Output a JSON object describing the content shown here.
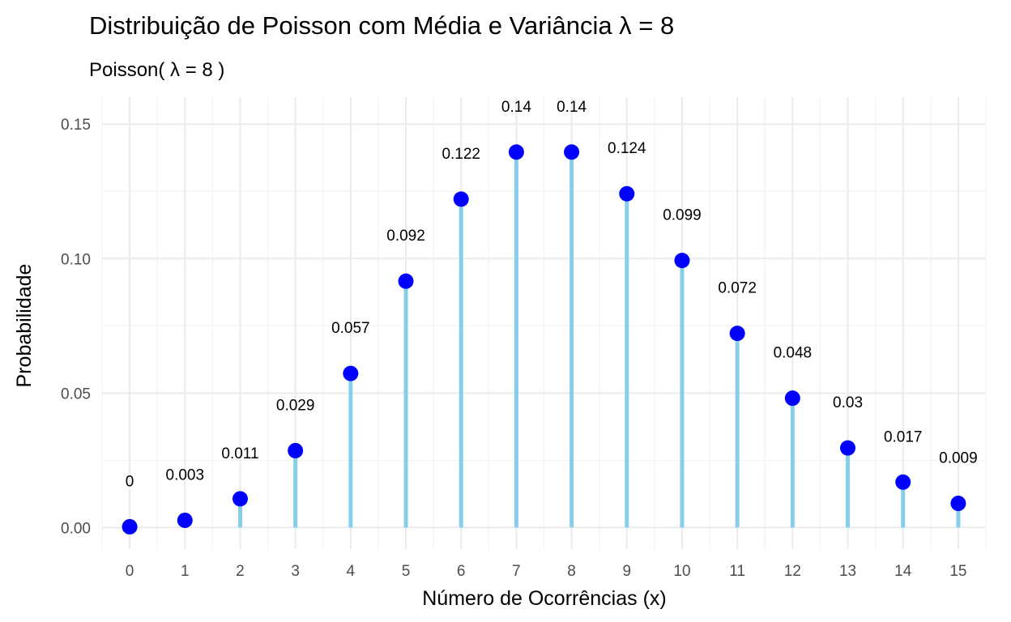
{
  "chart_data": {
    "type": "lollipop",
    "title": "Distribuição de Poisson com Média e Variância λ = 8",
    "subtitle": "Poisson( λ = 8 )",
    "xlabel": "Número de Ocorrências (x)",
    "ylabel": "Probabilidade",
    "x": [
      0,
      1,
      2,
      3,
      4,
      5,
      6,
      7,
      8,
      9,
      10,
      11,
      12,
      13,
      14,
      15
    ],
    "values": [
      0.0003,
      0.0027,
      0.0107,
      0.0286,
      0.0573,
      0.0916,
      0.1221,
      0.1396,
      0.1396,
      0.1241,
      0.0993,
      0.0722,
      0.0481,
      0.0296,
      0.0169,
      0.009
    ],
    "labels": [
      "0",
      "0.003",
      "0.011",
      "0.029",
      "0.057",
      "0.092",
      "0.122",
      "0.14",
      "0.14",
      "0.124",
      "0.099",
      "0.072",
      "0.048",
      "0.03",
      "0.017",
      "0.009"
    ],
    "yticks": [
      "0.00",
      "0.05",
      "0.10",
      "0.15"
    ],
    "ytick_values": [
      0,
      0.05,
      0.1,
      0.15
    ],
    "xlim": [
      -0.5,
      15.5
    ],
    "ylim": [
      -0.008,
      0.16
    ],
    "grid": true,
    "legend": "none",
    "colors": {
      "stem": "#87ceeb",
      "point": "#0000ff"
    }
  }
}
